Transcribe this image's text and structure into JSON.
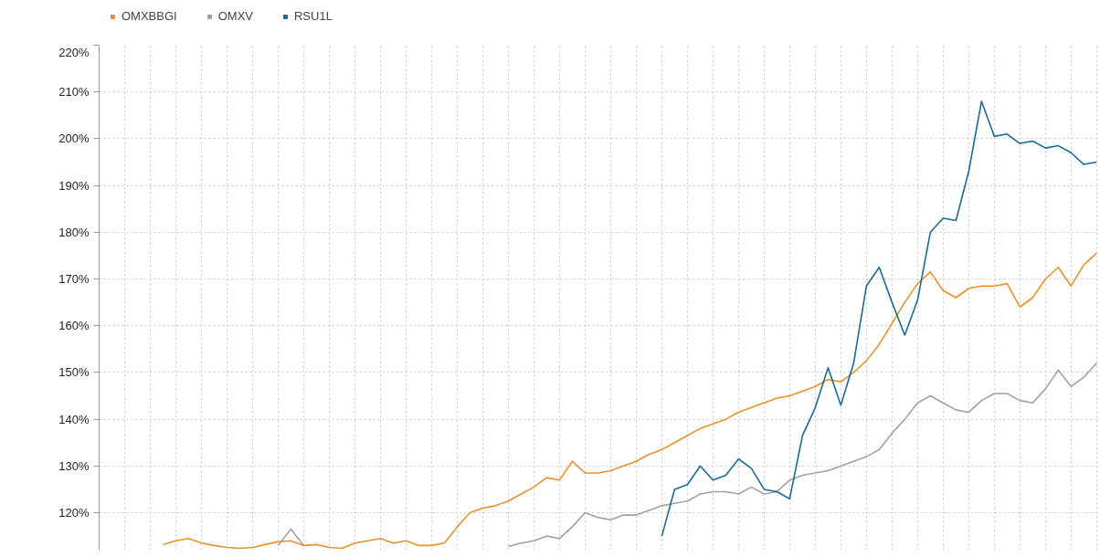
{
  "chart_data": {
    "type": "line",
    "categories": [
      null,
      null,
      null,
      null,
      null,
      null,
      null,
      null,
      null,
      null,
      null,
      null,
      null,
      null,
      null,
      null,
      null,
      null,
      null,
      null,
      null,
      null,
      null,
      null,
      null,
      null,
      null,
      null,
      null,
      null,
      null,
      null,
      null,
      null,
      null,
      null,
      null,
      null,
      null,
      null,
      null,
      null,
      null,
      null,
      null,
      null,
      null,
      null,
      null,
      null,
      null,
      null,
      null,
      null,
      null,
      null,
      null,
      null,
      null,
      null,
      null,
      null,
      null,
      null,
      null,
      null,
      null,
      null,
      null,
      null,
      null,
      null,
      null,
      null,
      null,
      null,
      null,
      null,
      null
    ],
    "series": [
      {
        "name": "OMXBBGI",
        "color": "#e8912b",
        "values": [
          null,
          null,
          null,
          null,
          null,
          113.2,
          114.0,
          114.5,
          113.5,
          113.0,
          112.6,
          112.4,
          112.6,
          113.2,
          113.8,
          114.0,
          113.0,
          113.2,
          112.6,
          112.4,
          113.5,
          114.0,
          114.5,
          113.5,
          114.0,
          113.0,
          113.0,
          113.5,
          117.0,
          120.0,
          121.0,
          121.5,
          122.5,
          124.0,
          125.5,
          127.5,
          127.0,
          131.0,
          128.5,
          128.5,
          129.0,
          130.0,
          131.0,
          132.5,
          133.5,
          135.0,
          136.5,
          138.0,
          139.0,
          140.0,
          141.5,
          142.5,
          143.5,
          144.5,
          145.0,
          146.0,
          147.0,
          148.5,
          148.0,
          150.0,
          152.5,
          156.0,
          160.5,
          165.0,
          169.0,
          171.5,
          167.5,
          166.0,
          168.0,
          168.5,
          168.5,
          169.0,
          164.0,
          166.0,
          170.0,
          172.5,
          168.5,
          173.0,
          175.5
        ]
      },
      {
        "name": "OMXV",
        "color": "#a0a0a0",
        "values": [
          null,
          null,
          null,
          null,
          null,
          null,
          null,
          null,
          null,
          null,
          null,
          null,
          null,
          null,
          113.0,
          116.5,
          113.0,
          null,
          null,
          null,
          null,
          null,
          null,
          null,
          null,
          null,
          null,
          null,
          null,
          null,
          null,
          null,
          112.8,
          113.5,
          114.0,
          115.0,
          114.5,
          117.0,
          120.0,
          119.0,
          118.5,
          119.5,
          119.5,
          120.5,
          121.5,
          122.0,
          122.5,
          124.0,
          124.5,
          124.5,
          124.0,
          125.5,
          124.0,
          124.5,
          127.0,
          128.0,
          128.5,
          129.0,
          130.0,
          131.0,
          132.0,
          133.5,
          137.0,
          140.0,
          143.5,
          145.0,
          143.5,
          142.0,
          141.5,
          144.0,
          145.5,
          145.5,
          144.0,
          143.5,
          146.5,
          150.5,
          147.0,
          149.0,
          152.0
        ]
      },
      {
        "name": "RSU1L",
        "color": "#1a6a96",
        "values": [
          null,
          null,
          null,
          null,
          null,
          null,
          null,
          null,
          null,
          null,
          null,
          null,
          null,
          null,
          null,
          null,
          null,
          null,
          null,
          null,
          null,
          null,
          null,
          null,
          null,
          null,
          null,
          null,
          null,
          null,
          null,
          null,
          null,
          null,
          null,
          null,
          null,
          null,
          null,
          null,
          null,
          null,
          null,
          null,
          115.0,
          125.0,
          126.0,
          130.0,
          127.0,
          128.0,
          131.5,
          129.5,
          125.0,
          124.5,
          123.0,
          136.5,
          142.5,
          151.0,
          143.0,
          152.0,
          168.5,
          172.5,
          165.0,
          158.0,
          165.5,
          180.0,
          183.0,
          182.5,
          193.0,
          208.0,
          200.5,
          201.0,
          199.0,
          199.5,
          198.0,
          198.5,
          197.0,
          194.5,
          195.0
        ]
      }
    ],
    "ylim": [
      112,
      220
    ],
    "yticks": [
      {
        "value": 120,
        "label": "120%"
      },
      {
        "value": 130,
        "label": "130%"
      },
      {
        "value": 140,
        "label": "140%"
      },
      {
        "value": 150,
        "label": "150%"
      },
      {
        "value": 160,
        "label": "160%"
      },
      {
        "value": 170,
        "label": "170%"
      },
      {
        "value": 180,
        "label": "180%"
      },
      {
        "value": 190,
        "label": "190%"
      },
      {
        "value": 200,
        "label": "200%"
      },
      {
        "value": 210,
        "label": "210%"
      },
      {
        "value": 220,
        "label": "220%"
      }
    ],
    "grid": true,
    "legend": "top left",
    "tick_labels": "y",
    "marker": "none",
    "line_style": "solid"
  }
}
